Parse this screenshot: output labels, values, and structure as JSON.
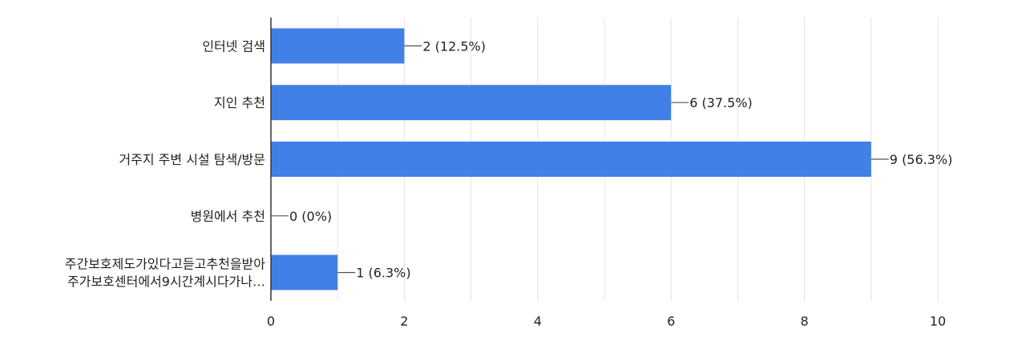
{
  "chart_data": {
    "type": "bar",
    "orientation": "horizontal",
    "title": "",
    "xlabel": "",
    "ylabel": "",
    "categories": [
      [
        "인터넷 검색"
      ],
      [
        "지인 추천"
      ],
      [
        "거주지 주변 시설 탐색/방문"
      ],
      [
        "병원에서 추천"
      ],
      [
        "주간보호제도가있다고듣고추천을받아",
        "주가보호센터에서9시간계시다가나…"
      ]
    ],
    "values": [
      2,
      6,
      9,
      0,
      1
    ],
    "data_labels": [
      "2 (12.5%)",
      "6 (37.5%)",
      "9 (56.3%)",
      "0 (0%)",
      "1 (6.3%)"
    ],
    "xlim": [
      0,
      10
    ],
    "x_ticks": [
      0,
      2,
      4,
      6,
      8,
      10
    ],
    "x_tick_labels": [
      "0",
      "2",
      "4",
      "6",
      "8",
      "10"
    ],
    "grid": true,
    "legend": "none",
    "colors": {
      "bar": "#4180e6",
      "grid": "#e4e4e4",
      "axis": "#333333",
      "text": "#222222",
      "leader": "#555555"
    }
  }
}
